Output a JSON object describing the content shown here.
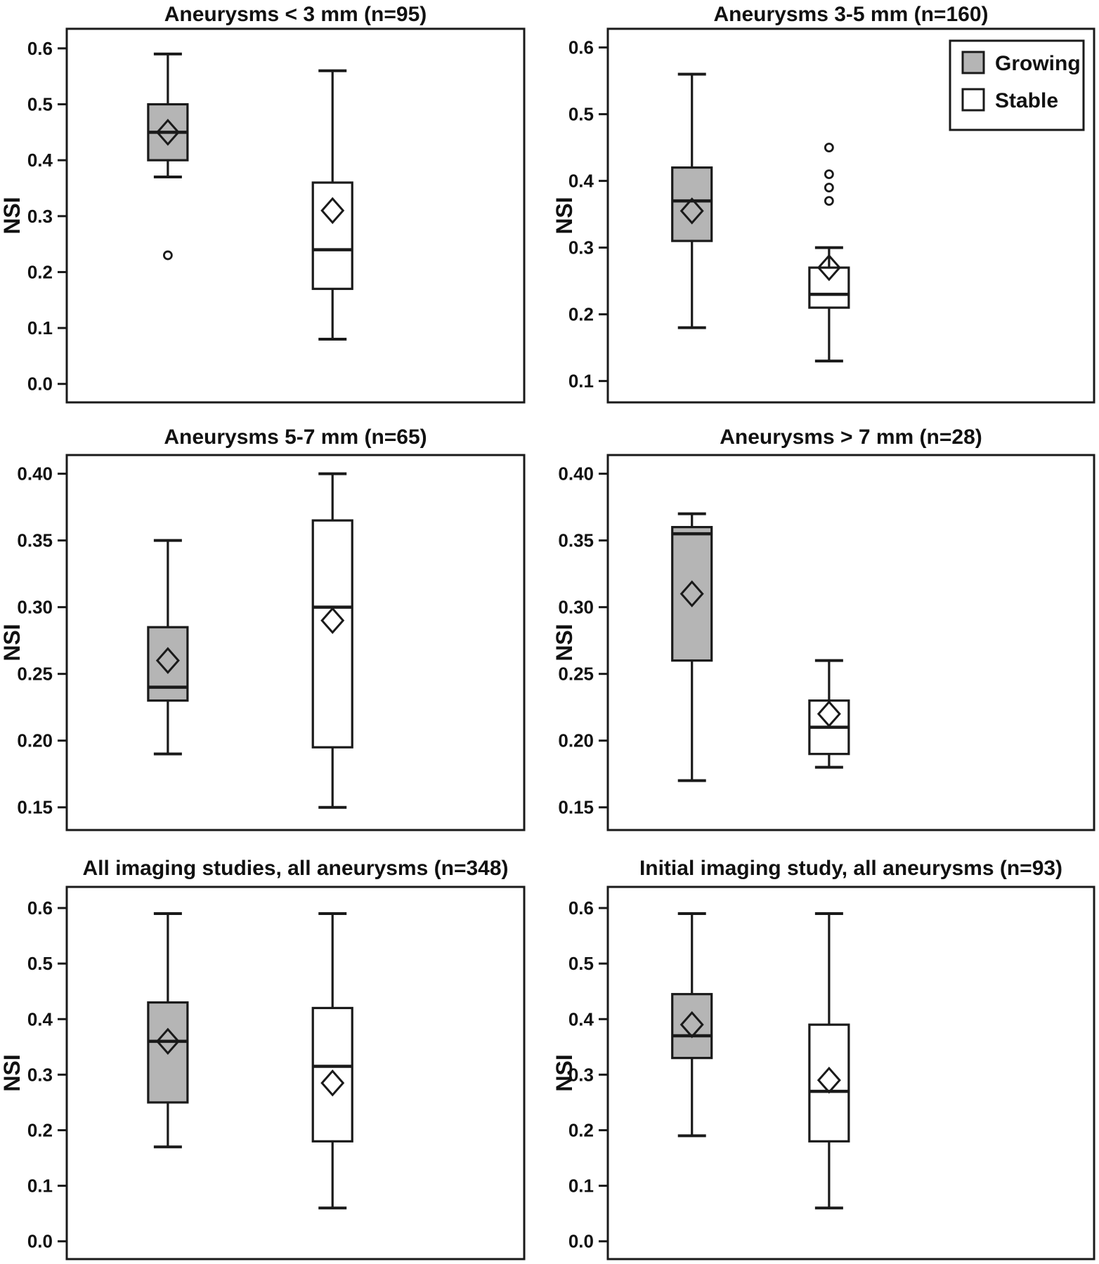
{
  "figure": {
    "ylabel": "NSI",
    "background": "#ffffff",
    "line_color": "#1a1a1a",
    "growing_fill": "#b5b5b5",
    "stable_fill": "#ffffff",
    "legend": {
      "position": "top-right of panel 2",
      "items": [
        {
          "label": "Growing",
          "fill": "#b5b5b5"
        },
        {
          "label": "Stable",
          "fill": "#ffffff"
        }
      ]
    }
  },
  "chart_data": [
    {
      "type": "box",
      "title": "Aneurysms < 3 mm (n=95)",
      "ylabel": "NSI",
      "ylim": [
        -0.033,
        0.635
      ],
      "ticks": [
        0.0,
        0.1,
        0.2,
        0.3,
        0.4,
        0.5,
        0.6
      ],
      "tick_decimals": 1,
      "x_centers": [
        0.221,
        0.581
      ],
      "show_legend": false,
      "groups": [
        {
          "name": "Growing",
          "fill": "#b5b5b5",
          "whisker_low": 0.37,
          "q1": 0.4,
          "median": 0.45,
          "q3": 0.5,
          "whisker_high": 0.59,
          "mean": 0.45,
          "outliers": [
            0.23
          ]
        },
        {
          "name": "Stable",
          "fill": "#ffffff",
          "whisker_low": 0.08,
          "q1": 0.17,
          "median": 0.24,
          "q3": 0.36,
          "whisker_high": 0.56,
          "mean": 0.31,
          "outliers": []
        }
      ]
    },
    {
      "type": "box",
      "title": "Aneurysms 3-5 mm (n=160)",
      "ylabel": "NSI",
      "ylim": [
        0.068,
        0.628
      ],
      "ticks": [
        0.1,
        0.2,
        0.3,
        0.4,
        0.5,
        0.6
      ],
      "tick_decimals": 1,
      "x_centers": [
        0.173,
        0.455
      ],
      "show_legend": true,
      "groups": [
        {
          "name": "Growing",
          "fill": "#b5b5b5",
          "whisker_low": 0.18,
          "q1": 0.31,
          "median": 0.37,
          "q3": 0.42,
          "whisker_high": 0.56,
          "mean": 0.355,
          "outliers": []
        },
        {
          "name": "Stable",
          "fill": "#ffffff",
          "whisker_low": 0.13,
          "q1": 0.21,
          "median": 0.23,
          "q3": 0.27,
          "whisker_high": 0.3,
          "mean": 0.27,
          "outliers": [
            0.37,
            0.39,
            0.41,
            0.45
          ]
        }
      ]
    },
    {
      "type": "box",
      "title": "Aneurysms 5-7 mm (n=65)",
      "ylabel": "NSI",
      "ylim": [
        0.133,
        0.414
      ],
      "ticks": [
        0.15,
        0.2,
        0.25,
        0.3,
        0.35,
        0.4
      ],
      "tick_decimals": 2,
      "x_centers": [
        0.221,
        0.581
      ],
      "show_legend": false,
      "groups": [
        {
          "name": "Growing",
          "fill": "#b5b5b5",
          "whisker_low": 0.19,
          "q1": 0.23,
          "median": 0.24,
          "q3": 0.285,
          "whisker_high": 0.35,
          "mean": 0.26,
          "outliers": []
        },
        {
          "name": "Stable",
          "fill": "#ffffff",
          "whisker_low": 0.15,
          "q1": 0.195,
          "median": 0.3,
          "q3": 0.365,
          "whisker_high": 0.4,
          "mean": 0.29,
          "outliers": []
        }
      ]
    },
    {
      "type": "box",
      "title": "Aneurysms > 7 mm (n=28)",
      "ylabel": "NSI",
      "ylim": [
        0.133,
        0.414
      ],
      "ticks": [
        0.15,
        0.2,
        0.25,
        0.3,
        0.35,
        0.4
      ],
      "tick_decimals": 2,
      "x_centers": [
        0.173,
        0.455
      ],
      "show_legend": false,
      "groups": [
        {
          "name": "Growing",
          "fill": "#b5b5b5",
          "whisker_low": 0.17,
          "q1": 0.26,
          "median": 0.355,
          "q3": 0.36,
          "whisker_high": 0.37,
          "mean": 0.31,
          "outliers": []
        },
        {
          "name": "Stable",
          "fill": "#ffffff",
          "whisker_low": 0.18,
          "q1": 0.19,
          "median": 0.21,
          "q3": 0.23,
          "whisker_high": 0.26,
          "mean": 0.22,
          "outliers": []
        }
      ]
    },
    {
      "type": "box",
      "title": "All imaging studies, all aneurysms (n=348)",
      "ylabel": "NSI",
      "ylim": [
        -0.032,
        0.638
      ],
      "ticks": [
        0.0,
        0.1,
        0.2,
        0.3,
        0.4,
        0.5,
        0.6
      ],
      "tick_decimals": 1,
      "x_centers": [
        0.221,
        0.581
      ],
      "show_legend": false,
      "groups": [
        {
          "name": "Growing",
          "fill": "#b5b5b5",
          "whisker_low": 0.17,
          "q1": 0.25,
          "median": 0.36,
          "q3": 0.43,
          "whisker_high": 0.59,
          "mean": 0.36,
          "outliers": []
        },
        {
          "name": "Stable",
          "fill": "#ffffff",
          "whisker_low": 0.06,
          "q1": 0.18,
          "median": 0.315,
          "q3": 0.42,
          "whisker_high": 0.59,
          "mean": 0.285,
          "outliers": []
        }
      ]
    },
    {
      "type": "box",
      "title": "Initial imaging study, all aneurysms (n=93)",
      "ylabel": "NSI",
      "ylim": [
        -0.032,
        0.638
      ],
      "ticks": [
        0.0,
        0.1,
        0.2,
        0.3,
        0.4,
        0.5,
        0.6
      ],
      "tick_decimals": 1,
      "x_centers": [
        0.173,
        0.455
      ],
      "show_legend": false,
      "groups": [
        {
          "name": "Growing",
          "fill": "#b5b5b5",
          "whisker_low": 0.19,
          "q1": 0.33,
          "median": 0.37,
          "q3": 0.445,
          "whisker_high": 0.59,
          "mean": 0.39,
          "outliers": []
        },
        {
          "name": "Stable",
          "fill": "#ffffff",
          "whisker_low": 0.06,
          "q1": 0.18,
          "median": 0.27,
          "q3": 0.39,
          "whisker_high": 0.59,
          "mean": 0.29,
          "outliers": []
        }
      ]
    }
  ]
}
